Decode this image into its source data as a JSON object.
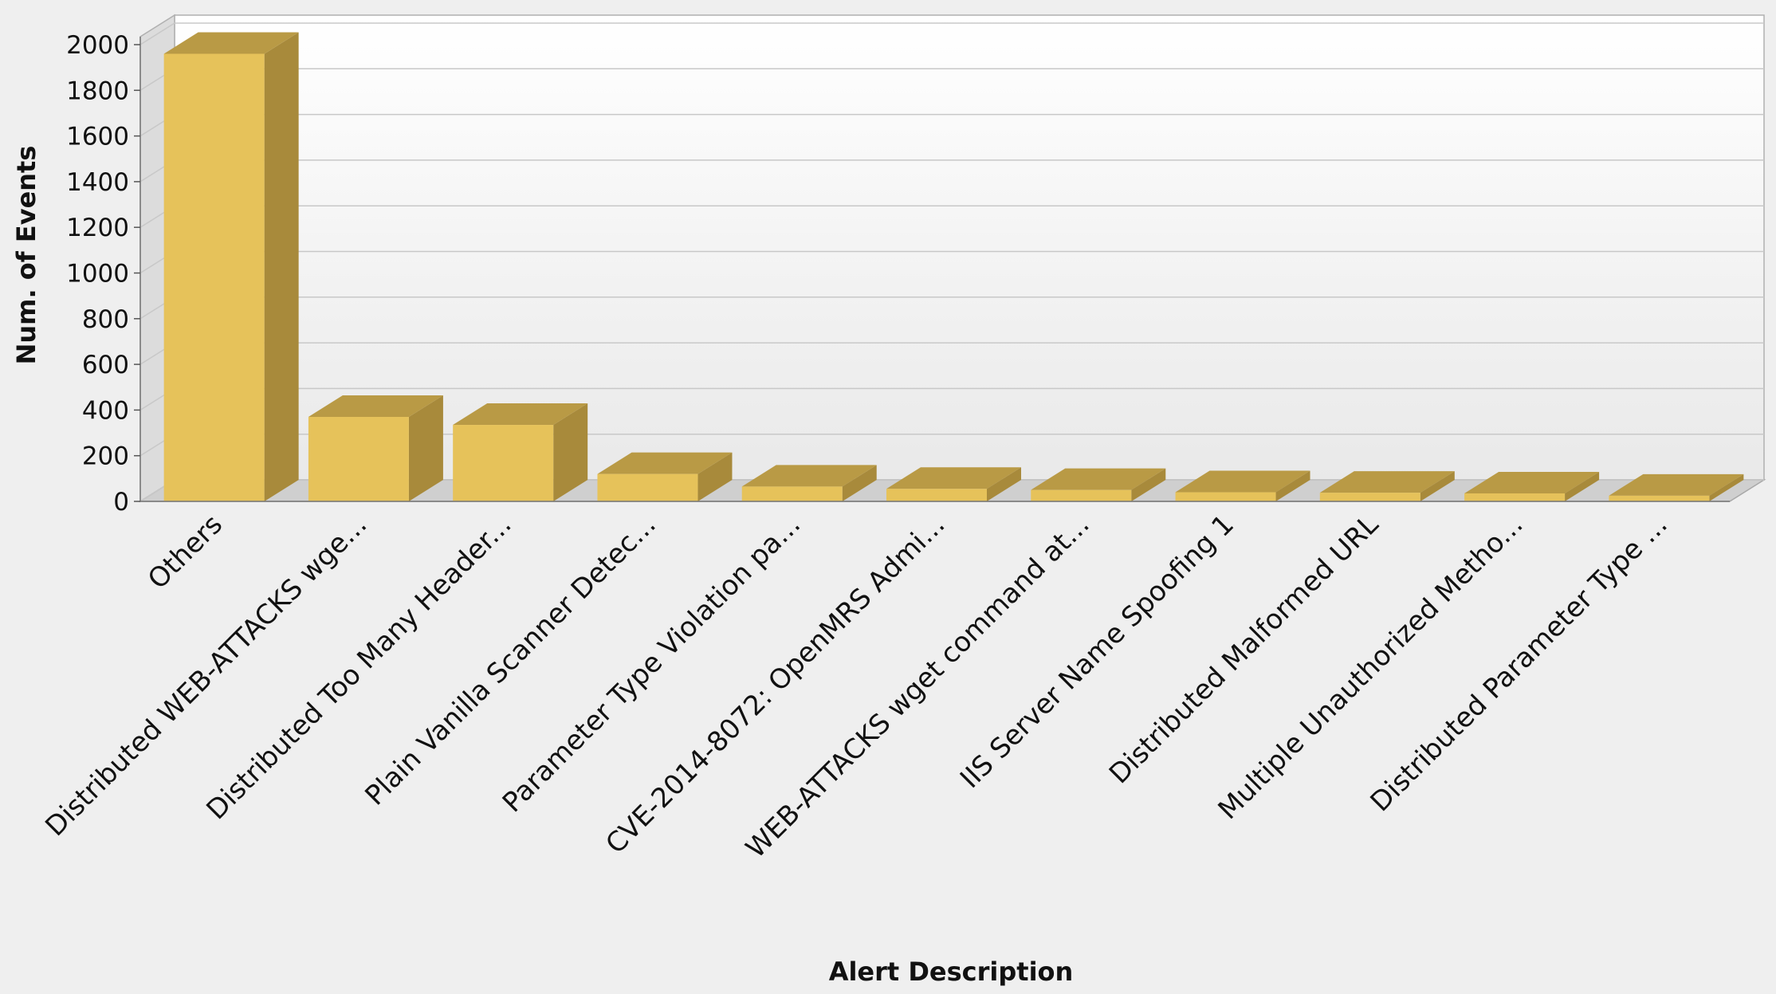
{
  "colors": {
    "bar_front": "#e6c25a",
    "bar_top": "#b99a45",
    "bar_side": "#a88a3b",
    "plot_back_top": "#ffffff",
    "plot_back_bottom": "#e9e9e9",
    "floor": "#cfcfcf",
    "grid": "#c8c8c8"
  },
  "chart_data": {
    "type": "bar",
    "style": "3d",
    "title": "",
    "xlabel": "Alert Description",
    "ylabel": "Num. of Events",
    "ylim": [
      0,
      2000
    ],
    "yticks": [
      0,
      200,
      400,
      600,
      800,
      1000,
      1200,
      1400,
      1600,
      1800,
      2000
    ],
    "grid": true,
    "legend": "none",
    "categories": [
      "Others",
      "Distributed WEB-ATTACKS wge...",
      "Distributed Too Many Header...",
      "Plain Vanilla Scanner Detec...",
      "Parameter Type Violation pa...",
      "CVE-2014-8072: OpenMRS Admi...",
      "WEB-ATTACKS wget command at...",
      "IIS Server Name Spoofing 1",
      "Distributed Malformed URL",
      "Multiple Unauthorized Metho...",
      "Distributed Parameter Type ..."
    ],
    "values": [
      1960,
      370,
      335,
      120,
      65,
      55,
      50,
      40,
      38,
      35,
      25
    ]
  }
}
